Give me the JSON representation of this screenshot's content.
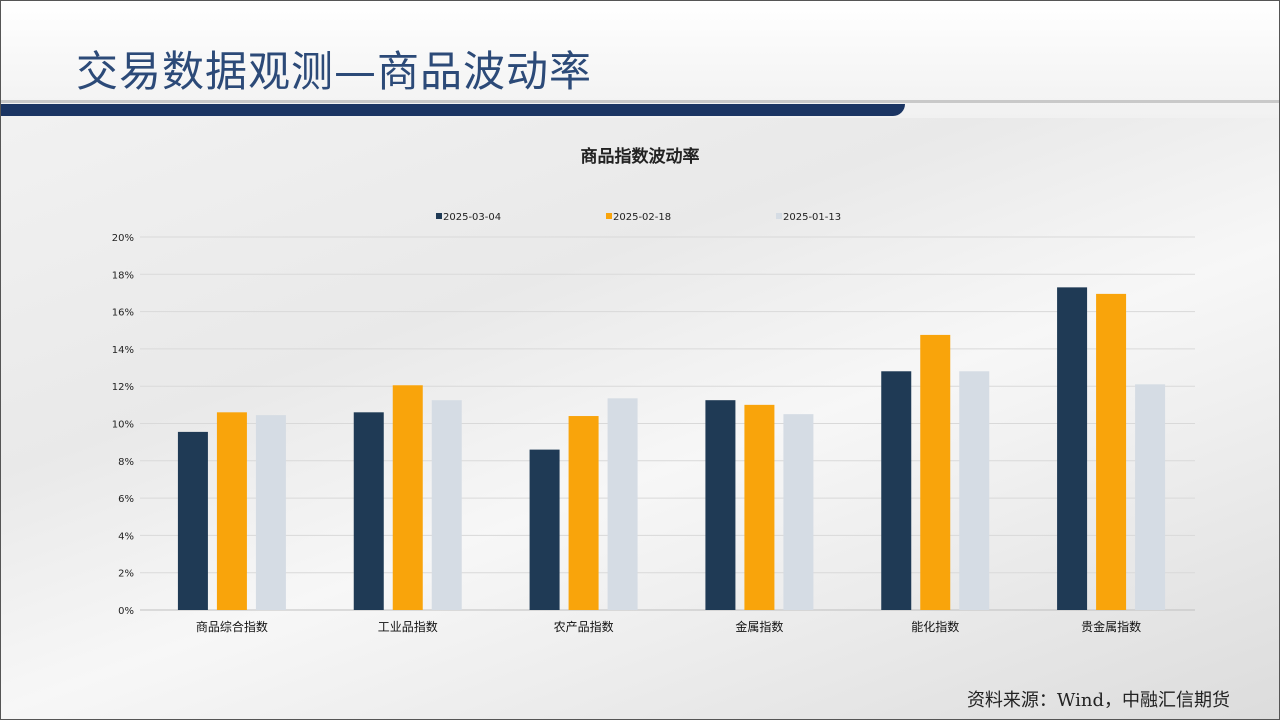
{
  "header": {
    "title": "交易数据观测—商品波动率"
  },
  "source": "资料来源：Wind，中融汇信期货",
  "colors": {
    "s1": "#1f3a55",
    "s2": "#f9a40b",
    "s3": "#d5dce4"
  },
  "chart_data": {
    "type": "bar",
    "title": "商品指数波动率",
    "categories": [
      "商品综合指数",
      "工业品指数",
      "农产品指数",
      "金属指数",
      "能化指数",
      "贵金属指数"
    ],
    "series": [
      {
        "name": "2025-03-04",
        "values": [
          9.55,
          10.6,
          8.6,
          11.25,
          12.8,
          17.3
        ]
      },
      {
        "name": "2025-02-18",
        "values": [
          10.6,
          12.05,
          10.4,
          11.0,
          14.75,
          16.95
        ]
      },
      {
        "name": "2025-01-13",
        "values": [
          10.45,
          11.25,
          11.35,
          10.5,
          12.8,
          12.1
        ]
      }
    ],
    "yticks": [
      "0%",
      "2%",
      "4%",
      "6%",
      "8%",
      "10%",
      "12%",
      "14%",
      "16%",
      "18%",
      "20%"
    ],
    "ylim": [
      0,
      20
    ],
    "ylabel": "",
    "xlabel": "",
    "legend": "top",
    "grid": true
  }
}
